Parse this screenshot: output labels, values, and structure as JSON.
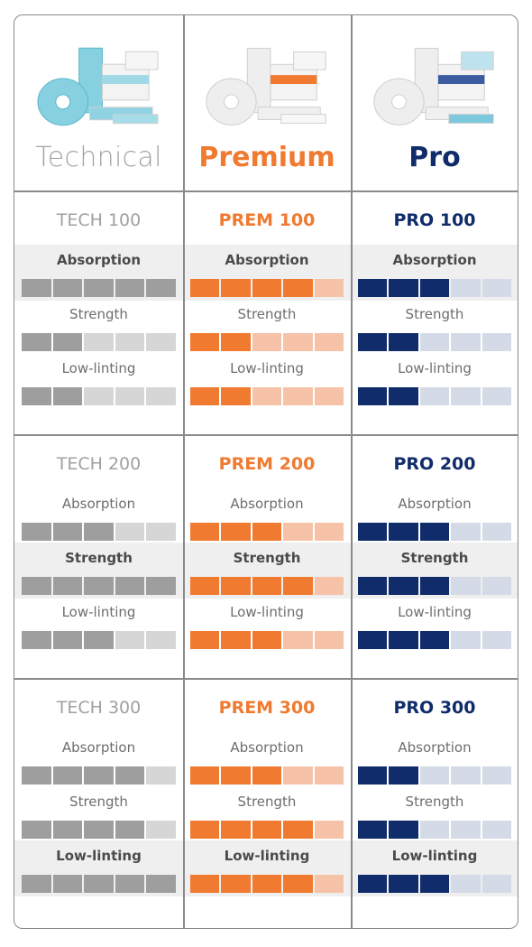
{
  "colors": {
    "technical": {
      "filled": "#9e9e9e",
      "empty": "#d6d6d6"
    },
    "premium": {
      "filled": "#ef7a30",
      "empty": "#f6c3a8"
    },
    "pro": {
      "filled": "#102c6a",
      "empty": "#d4dbe6"
    }
  },
  "columns": [
    {
      "key": "technical",
      "brand": "Technical",
      "image": "technical-products-image"
    },
    {
      "key": "premium",
      "brand": "Premium",
      "image": "premium-products-image"
    },
    {
      "key": "pro",
      "brand": "Pro",
      "image": "pro-products-image"
    }
  ],
  "rows": [
    {
      "highlight": "Absorption",
      "products": [
        {
          "name": "TECH 100",
          "ratings": {
            "Absorption": 5,
            "Strength": 2,
            "Low-linting": 2
          }
        },
        {
          "name": "PREM 100",
          "ratings": {
            "Absorption": 4,
            "Strength": 2,
            "Low-linting": 2
          }
        },
        {
          "name": "PRO 100",
          "ratings": {
            "Absorption": 3,
            "Strength": 2,
            "Low-linting": 2
          }
        }
      ]
    },
    {
      "highlight": "Strength",
      "products": [
        {
          "name": "TECH 200",
          "ratings": {
            "Absorption": 3,
            "Strength": 5,
            "Low-linting": 3
          }
        },
        {
          "name": "PREM 200",
          "ratings": {
            "Absorption": 3,
            "Strength": 4,
            "Low-linting": 3
          }
        },
        {
          "name": "PRO 200",
          "ratings": {
            "Absorption": 3,
            "Strength": 3,
            "Low-linting": 3
          }
        }
      ]
    },
    {
      "highlight": "Low-linting",
      "products": [
        {
          "name": "TECH 300",
          "ratings": {
            "Absorption": 4,
            "Strength": 4,
            "Low-linting": 5
          }
        },
        {
          "name": "PREM 300",
          "ratings": {
            "Absorption": 3,
            "Strength": 4,
            "Low-linting": 4
          }
        },
        {
          "name": "PRO 300",
          "ratings": {
            "Absorption": 2,
            "Strength": 2,
            "Low-linting": 3
          }
        }
      ]
    }
  ],
  "metrics": [
    "Absorption",
    "Strength",
    "Low-linting"
  ],
  "scale_max": 5
}
